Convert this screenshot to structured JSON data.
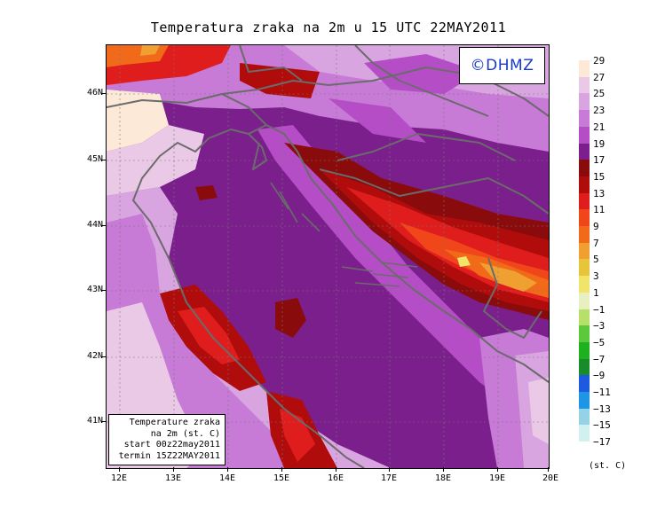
{
  "title": "Temperatura zraka na 2m u 15 UTC 22MAY2011",
  "watermark": "©DHMZ",
  "info_box": {
    "line1": "Temperature zraka",
    "line2": "na 2m (st. C)",
    "line3": "start 00z22may2011",
    "line4": "termin 15Z22MAY2011"
  },
  "axes": {
    "lat_labels": [
      "46N",
      "45N",
      "44N",
      "43N",
      "42N",
      "41N"
    ],
    "lon_labels": [
      "12E",
      "13E",
      "14E",
      "15E",
      "16E",
      "17E",
      "18E",
      "19E",
      "20E"
    ]
  },
  "legend": {
    "unit": "(st. C)",
    "entries": [
      {
        "label": "29",
        "color": "#fde9d8"
      },
      {
        "label": "27",
        "color": "#e9c9e6"
      },
      {
        "label": "25",
        "color": "#d9a5e0"
      },
      {
        "label": "23",
        "color": "#c77ad6"
      },
      {
        "label": "21",
        "color": "#b54dc7"
      },
      {
        "label": "19",
        "color": "#7a1f8c"
      },
      {
        "label": "17",
        "color": "#8a0b0b"
      },
      {
        "label": "15",
        "color": "#b00c0c"
      },
      {
        "label": "13",
        "color": "#e01d1d"
      },
      {
        "label": "11",
        "color": "#f0461a"
      },
      {
        "label": "9",
        "color": "#f06a1a"
      },
      {
        "label": "7",
        "color": "#f0a030"
      },
      {
        "label": "5",
        "color": "#e8c43a"
      },
      {
        "label": "3",
        "color": "#f0e56a"
      },
      {
        "label": "1",
        "color": "#e8f0c0"
      },
      {
        "label": "−1",
        "color": "#b6e06a"
      },
      {
        "label": "−3",
        "color": "#5cc83c"
      },
      {
        "label": "−5",
        "color": "#1eb01e"
      },
      {
        "label": "−7",
        "color": "#188c28"
      },
      {
        "label": "−9",
        "color": "#1e5ae0"
      },
      {
        "label": "−11",
        "color": "#1e96e6"
      },
      {
        "label": "−13",
        "color": "#96d2e6"
      },
      {
        "label": "−15",
        "color": "#d2f0f0"
      },
      {
        "label": "−17",
        "color": "#ffffff"
      }
    ]
  }
}
